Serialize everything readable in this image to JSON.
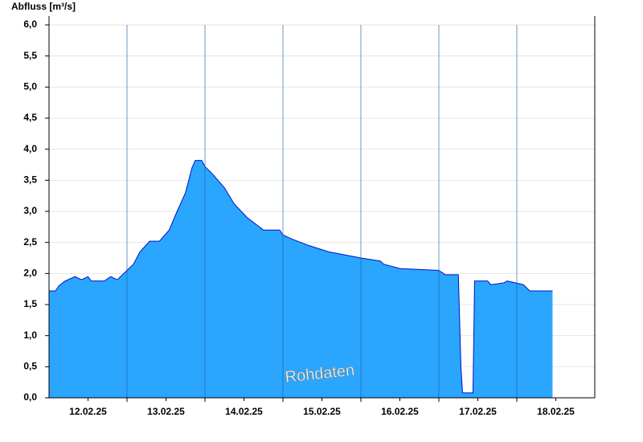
{
  "chart_data": {
    "type": "area",
    "title": "Abfluss [m³/s]",
    "annotation": "Rohdaten",
    "color": "#2aa6ff",
    "line_color": "#0010c8",
    "grid": true,
    "xlim": [
      "2025-02-12T00:00",
      "2025-02-19T00:00"
    ],
    "xticks": [
      {
        "value": "2025-02-12T12:00",
        "label": "12.02.25"
      },
      {
        "value": "2025-02-13T12:00",
        "label": "13.02.25"
      },
      {
        "value": "2025-02-14T12:00",
        "label": "14.02.25"
      },
      {
        "value": "2025-02-15T12:00",
        "label": "15.02.25"
      },
      {
        "value": "2025-02-16T12:00",
        "label": "16.02.25"
      },
      {
        "value": "2025-02-17T12:00",
        "label": "17.02.25"
      },
      {
        "value": "2025-02-18T12:00",
        "label": "18.02.25"
      }
    ],
    "xgrid": [
      "2025-02-13T00:00",
      "2025-02-14T00:00",
      "2025-02-15T00:00",
      "2025-02-16T00:00",
      "2025-02-17T00:00",
      "2025-02-18T00:00"
    ],
    "ylim": [
      0,
      6
    ],
    "yticks": [
      {
        "value": 0,
        "label": "0,0"
      },
      {
        "value": 0.5,
        "label": "0,5"
      },
      {
        "value": 1,
        "label": "1,0"
      },
      {
        "value": 1.5,
        "label": "1,5"
      },
      {
        "value": 2,
        "label": "2,0"
      },
      {
        "value": 2.5,
        "label": "2,5"
      },
      {
        "value": 3,
        "label": "3,0"
      },
      {
        "value": 3.5,
        "label": "3,5"
      },
      {
        "value": 4,
        "label": "4,0"
      },
      {
        "value": 4.5,
        "label": "4,5"
      },
      {
        "value": 5,
        "label": "5,0"
      },
      {
        "value": 5.5,
        "label": "5,5"
      },
      {
        "value": 6,
        "label": "6,0"
      }
    ],
    "x": [
      "2025-02-12T00:00",
      "2025-02-12T02:00",
      "2025-02-12T03:00",
      "2025-02-12T05:00",
      "2025-02-12T08:00",
      "2025-02-12T10:00",
      "2025-02-12T12:00",
      "2025-02-12T13:00",
      "2025-02-12T17:00",
      "2025-02-12T19:00",
      "2025-02-12T21:00",
      "2025-02-12T22:00",
      "2025-02-13T00:00",
      "2025-02-13T02:00",
      "2025-02-13T04:00",
      "2025-02-13T07:00",
      "2025-02-13T10:00",
      "2025-02-13T13:00",
      "2025-02-13T15:00",
      "2025-02-13T18:00",
      "2025-02-13T20:00",
      "2025-02-13T21:00",
      "2025-02-13T23:00",
      "2025-02-14T00:00",
      "2025-02-14T02:00",
      "2025-02-14T06:00",
      "2025-02-14T09:00",
      "2025-02-14T13:00",
      "2025-02-14T16:00",
      "2025-02-14T18:00",
      "2025-02-14T23:00",
      "2025-02-15T00:00",
      "2025-02-15T03:00",
      "2025-02-15T08:00",
      "2025-02-15T14:00",
      "2025-02-16T00:00",
      "2025-02-16T06:00",
      "2025-02-16T07:00",
      "2025-02-16T12:00",
      "2025-02-17T00:00",
      "2025-02-17T02:00",
      "2025-02-17T06:00",
      "2025-02-17T06:48",
      "2025-02-17T07:18",
      "2025-02-17T10:30",
      "2025-02-17T11:00",
      "2025-02-17T15:00",
      "2025-02-17T16:00",
      "2025-02-17T20:00",
      "2025-02-17T21:00",
      "2025-02-18T02:00",
      "2025-02-18T04:00",
      "2025-02-18T11:00"
    ],
    "values": [
      1.72,
      1.72,
      1.8,
      1.88,
      1.95,
      1.9,
      1.95,
      1.88,
      1.88,
      1.95,
      1.9,
      1.95,
      2.05,
      2.15,
      2.35,
      2.52,
      2.52,
      2.7,
      2.95,
      3.3,
      3.7,
      3.82,
      3.82,
      3.72,
      3.62,
      3.38,
      3.12,
      2.9,
      2.78,
      2.7,
      2.7,
      2.62,
      2.55,
      2.45,
      2.35,
      2.25,
      2.2,
      2.15,
      2.08,
      2.05,
      1.98,
      1.98,
      0.5,
      0.08,
      0.08,
      1.88,
      1.88,
      1.82,
      1.85,
      1.88,
      1.82,
      1.72,
      1.72
    ]
  }
}
